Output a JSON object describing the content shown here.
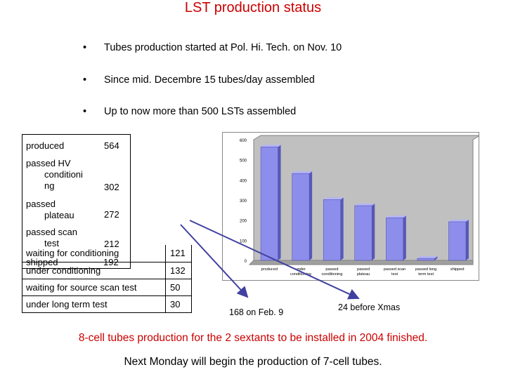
{
  "title": "LST production status",
  "bullets": [
    "Tubes production started at Pol. Hi. Tech. on Nov. 10",
    "Since mid. Decembre 15 tubes/day assembled",
    "Up to now  more than 500 LSTs assembled"
  ],
  "bullet_glyph": "•",
  "status_table": [
    {
      "label": "produced",
      "value": "564"
    },
    {
      "label": "passed HV\nconditioni\nng",
      "value": "302"
    },
    {
      "label": "passed\nplateau",
      "value": "272"
    },
    {
      "label": "passed scan\ntest",
      "value": "212"
    }
  ],
  "status_table_overlap": {
    "label": "shipped",
    "value": "192"
  },
  "waiting_table": [
    {
      "label": "waiting for conditioning",
      "value": "121"
    },
    {
      "label": "under conditioning",
      "value": "132"
    },
    {
      "label": "waiting for source scan test",
      "value": "50"
    },
    {
      "label": "under long term test",
      "value": "30"
    }
  ],
  "chart_data": {
    "type": "bar",
    "categories": [
      "produced",
      "under\nconditioning",
      "passed\nconditioning",
      "passed\nplateau",
      "passed scan\ntest",
      "passed long\nterm test",
      "shipped"
    ],
    "values": [
      564,
      432,
      302,
      272,
      212,
      10,
      192
    ],
    "ylim": [
      0,
      600
    ],
    "yticks": [
      "0",
      "100",
      "200",
      "300",
      "400",
      "500",
      "600"
    ],
    "bar_color": "#8d8dec",
    "plot_bg": "#c0c0c0",
    "grid": false
  },
  "annotations": {
    "feb": "168 on Feb. 9",
    "xmas": "24 before Xmas"
  },
  "footer": {
    "line1": "8-cell tubes production for the 2 sextants to be installed in 2004 finished.",
    "line2": "Next Monday will begin the production of 7-cell tubes."
  },
  "colors": {
    "title": "#cc0000",
    "arrow": "#4040a0"
  }
}
